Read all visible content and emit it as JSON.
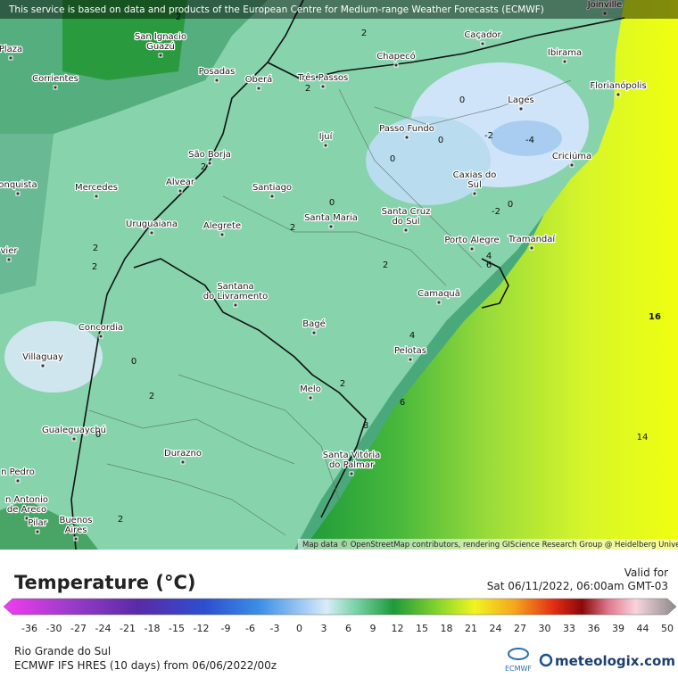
{
  "header": {
    "notice": "This service is based on data and products of the European Centre for Medium-range Weather Forecasts (ECMWF)"
  },
  "map": {
    "cities": [
      {
        "lines": [
          "San Ignacio",
          "Guazú"
        ]
      },
      {
        "lines": [
          "Plaza"
        ]
      },
      {
        "lines": [
          "Corrientes"
        ]
      },
      {
        "lines": [
          "Posadas"
        ]
      },
      {
        "lines": [
          "Oberá"
        ]
      },
      {
        "lines": [
          "Três Passos"
        ]
      },
      {
        "lines": [
          "Chapecó"
        ]
      },
      {
        "lines": [
          "Caçador"
        ]
      },
      {
        "lines": [
          "Ibirama"
        ]
      },
      {
        "lines": [
          "Joinville"
        ]
      },
      {
        "lines": [
          "Florianópolis"
        ]
      },
      {
        "lines": [
          "Lages"
        ]
      },
      {
        "lines": [
          "Passo Fundo"
        ]
      },
      {
        "lines": [
          "Ijuí"
        ]
      },
      {
        "lines": [
          "São Borja"
        ]
      },
      {
        "lines": [
          "Criciúma"
        ]
      },
      {
        "lines": [
          "Alvear"
        ]
      },
      {
        "lines": [
          "Mercedes"
        ]
      },
      {
        "lines": [
          "Santiago"
        ]
      },
      {
        "lines": [
          "Caxias do",
          "Sul"
        ]
      },
      {
        "lines": [
          "onquista"
        ]
      },
      {
        "lines": [
          "Santa Maria"
        ]
      },
      {
        "lines": [
          "Santa Cruz",
          "do Sul"
        ]
      },
      {
        "lines": [
          "Uruguaiana"
        ]
      },
      {
        "lines": [
          "Alegrete"
        ]
      },
      {
        "lines": [
          "Porto Alegre"
        ]
      },
      {
        "lines": [
          "Tramandaí"
        ]
      },
      {
        "lines": [
          "vier"
        ]
      },
      {
        "lines": [
          "Santana",
          "do Livramento"
        ]
      },
      {
        "lines": [
          "Camaquã"
        ]
      },
      {
        "lines": [
          "Concordia"
        ]
      },
      {
        "lines": [
          "Bagé"
        ]
      },
      {
        "lines": [
          "Villaguay"
        ]
      },
      {
        "lines": [
          "Pelotas"
        ]
      },
      {
        "lines": [
          "Melo"
        ]
      },
      {
        "lines": [
          "Gualeguaychú"
        ]
      },
      {
        "lines": [
          "Durazno"
        ]
      },
      {
        "lines": [
          "Santa Vitória",
          "do Palmar"
        ]
      },
      {
        "lines": [
          "n Pedro"
        ]
      },
      {
        "lines": [
          "n Antonio",
          "de Areco"
        ]
      },
      {
        "lines": [
          "Pilar"
        ]
      },
      {
        "lines": [
          "Buenos",
          "Aires"
        ]
      }
    ],
    "contour_labels": [
      2,
      2,
      0,
      0,
      -2,
      -4,
      0,
      0,
      2,
      2,
      2,
      2,
      0,
      -2,
      4,
      6,
      8,
      2,
      4,
      6,
      2,
      0,
      0,
      2,
      2,
      16,
      14,
      2
    ],
    "attribution": "Map data © OpenStreetMap contributors, rendering GIScience Research Group @ Heidelberg University"
  },
  "legend": {
    "title": "Temperature (°C)",
    "valid_label": "Valid for",
    "valid_time": "Sat 06/11/2022, 06:00am GMT-03",
    "ticks": [
      -36,
      -30,
      -27,
      -24,
      -21,
      -18,
      -15,
      -12,
      -9,
      -6,
      -3,
      0,
      3,
      6,
      9,
      12,
      15,
      18,
      21,
      24,
      27,
      30,
      33,
      36,
      39,
      44,
      50
    ]
  },
  "footer": {
    "region": "Rio Grande do Sul",
    "model": "ECMWF IFS HRES (10 days) from 06/06/2022/00z",
    "ecmwf_logo": "ECMWF",
    "brand": "meteologix.com"
  }
}
